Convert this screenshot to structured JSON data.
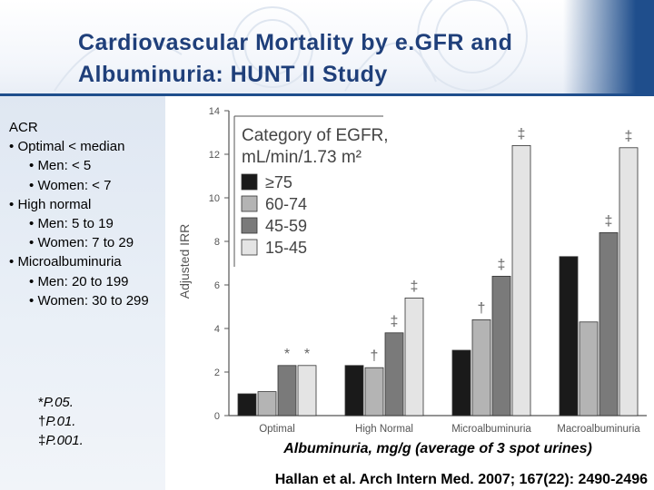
{
  "slide": {
    "title_line1": "Cardiovascular Mortality by e.GFR and",
    "title_line2": "Albuminuria: HUNT II Study",
    "citation": "Hallan et al. Arch Intern Med. 2007; 167(22): 2490-2496",
    "xlabel": "Albuminuria, mg/g (average of 3 spot urines)"
  },
  "acr": {
    "heading": "ACR",
    "items": [
      {
        "bullet": "•",
        "text": "Optimal < median",
        "level": 1
      },
      {
        "bullet": "•",
        "text": "Men: < 5",
        "level": 2
      },
      {
        "bullet": "•",
        "text": "Women: < 7",
        "level": 2
      },
      {
        "bullet": "•",
        "text": "High normal",
        "level": 1
      },
      {
        "bullet": "•",
        "text": " Men: 5 to 19",
        "level": 2
      },
      {
        "bullet": "•",
        "text": " Women:  7 to 29",
        "level": 2
      },
      {
        "bullet": "•",
        "text": "Microalbuminuria",
        "level": 1
      },
      {
        "bullet": "•",
        "text": "Men: 20 to 199",
        "level": 2
      },
      {
        "bullet": "•",
        "text": "Women: 30 to 299",
        "level": 2
      }
    ]
  },
  "pvalues": [
    {
      "symbol": "*",
      "text": "P.05."
    },
    {
      "symbol": "†",
      "text": "P.01."
    },
    {
      "symbol": "‡",
      "text": "P.001."
    }
  ],
  "chart_data": {
    "type": "bar",
    "ylabel": "Adjusted IRR",
    "ylim": [
      0,
      14
    ],
    "yticks": [
      "0",
      "2",
      "4",
      "6",
      "8",
      "10",
      "12",
      "14"
    ],
    "categories": [
      "Optimal",
      "High Normal",
      "Microalbuminuria",
      "Macroalbuminuria"
    ],
    "legend_title_line1": "Category of EGFR,",
    "legend_title_line2": "mL/min/1.73 m²",
    "series": [
      {
        "name": "≥75",
        "color": "#1a1a1a",
        "values": [
          1.0,
          2.3,
          3.0,
          7.3
        ],
        "markers": [
          "",
          "",
          "",
          ""
        ]
      },
      {
        "name": "60-74",
        "color": "#b4b4b4",
        "values": [
          1.1,
          2.2,
          4.4,
          4.3
        ],
        "markers": [
          "",
          "†",
          "†",
          ""
        ]
      },
      {
        "name": "45-59",
        "color": "#7a7a7a",
        "values": [
          2.3,
          3.8,
          6.4,
          8.4
        ],
        "markers": [
          "*",
          "‡",
          "‡",
          "‡"
        ]
      },
      {
        "name": "15-45",
        "color": "#e4e4e4",
        "values": [
          2.3,
          5.4,
          12.4,
          12.3
        ],
        "markers": [
          "*",
          "‡",
          "‡",
          "‡"
        ]
      }
    ]
  }
}
